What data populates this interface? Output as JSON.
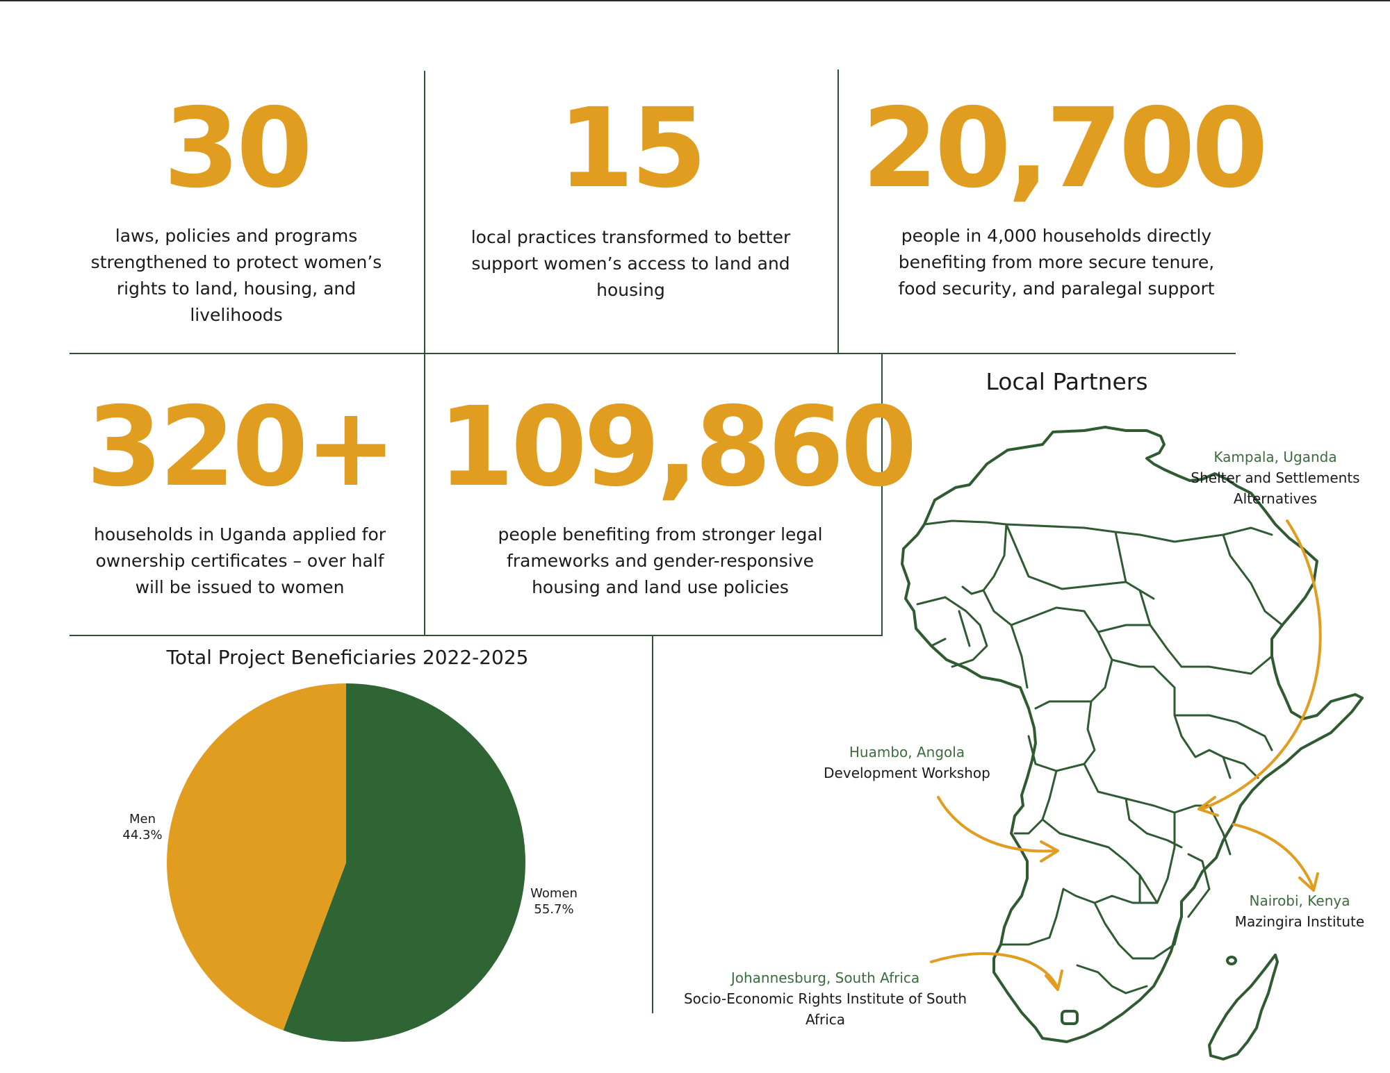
{
  "stats": [
    {
      "number": "30",
      "text": "laws, policies and programs strengthened to protect women’s rights to land, housing, and livelihoods"
    },
    {
      "number": "15",
      "text": "local practices transformed to better support women’s access to land and housing"
    },
    {
      "number": "20,700",
      "text": "people in 4,000 households directly benefiting from more secure tenure, food security, and paralegal support"
    },
    {
      "number": "320+",
      "text": "households in Uganda applied for ownership certificates – over half will be issued to women"
    },
    {
      "number": "109,860",
      "text": "people benefiting from stronger legal frameworks and gender-responsive housing and land use policies"
    }
  ],
  "chart_data": {
    "type": "pie",
    "title": "Total Project Beneficiaries 2022-2025",
    "slices": [
      {
        "label": "Women",
        "value": 55.7,
        "display": "55.7%",
        "color": "#2f6535"
      },
      {
        "label": "Men",
        "value": 44.3,
        "display": "44.3%",
        "color": "#e09d1f"
      }
    ]
  },
  "map": {
    "title": "Local Partners",
    "stroke_color": "#2f5a32",
    "arrow_color": "#e09d1f",
    "partners": [
      {
        "city": "Kampala, Uganda",
        "org": "Shelter and Settlements Alternatives"
      },
      {
        "city": "Huambo, Angola",
        "org": "Development Workshop"
      },
      {
        "city": "Nairobi, Kenya",
        "org": "Mazingira Institute"
      },
      {
        "city": "Johannesburg, South Africa",
        "org": "Socio-Economic Rights Institute of South Africa"
      }
    ]
  }
}
